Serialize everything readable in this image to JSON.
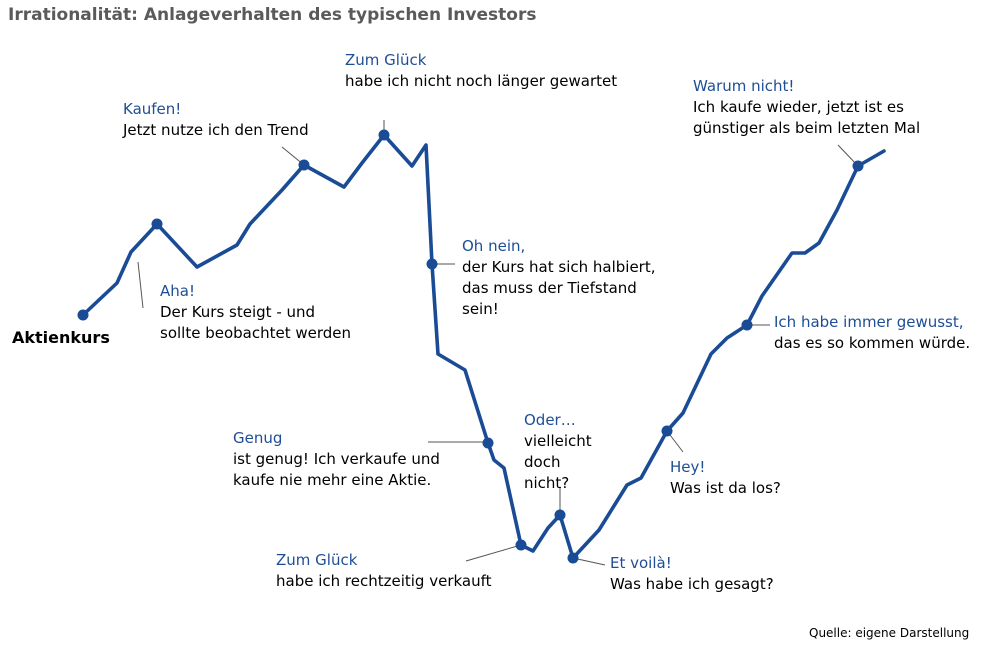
{
  "title": "Irrationalität: Anlageverhalten des typischen Investors",
  "series_label": "Aktienkurs",
  "source": "Quelle: eigene Darstellung",
  "colors": {
    "line": "#1a4b95",
    "heading": "#1f4e96",
    "title": "#5a5a5a",
    "leader": "#555555"
  },
  "annotations": [
    {
      "id": "aha",
      "heading": "Aha!",
      "lines": [
        "Der Kurs steigt - und",
        "sollte beobachtet werden"
      ]
    },
    {
      "id": "kaufen",
      "heading": "Kaufen!",
      "lines": [
        "Jetzt nutze ich den Trend"
      ]
    },
    {
      "id": "zum-glueck-top",
      "heading": "Zum Glück",
      "lines": [
        "habe ich nicht noch länger gewartet"
      ]
    },
    {
      "id": "oh-nein",
      "heading": "Oh nein,",
      "lines": [
        "der Kurs hat sich halbiert,",
        "das muss der Tiefstand",
        "sein!"
      ]
    },
    {
      "id": "genug",
      "heading": "Genug",
      "lines": [
        "ist genug! Ich verkaufe und",
        "kaufe nie mehr eine Aktie."
      ]
    },
    {
      "id": "zum-glueck-bottom",
      "heading": "Zum Glück",
      "lines": [
        "habe ich rechtzeitig verkauft"
      ]
    },
    {
      "id": "oder",
      "heading": "Oder…",
      "lines": [
        "vielleicht",
        "doch",
        "nicht?"
      ]
    },
    {
      "id": "et-voila",
      "heading": "Et voilà!",
      "lines": [
        "Was habe ich gesagt?"
      ]
    },
    {
      "id": "hey",
      "heading": "Hey!",
      "lines": [
        "Was ist da los?"
      ]
    },
    {
      "id": "immer-gewusst",
      "heading": "Ich habe immer gewusst,",
      "lines": [
        "das es so kommen würde."
      ]
    },
    {
      "id": "warum-nicht",
      "heading": "Warum nicht!",
      "lines": [
        "Ich kaufe wieder, jetzt ist es",
        "günstiger als beim letzten Mal"
      ]
    }
  ]
}
